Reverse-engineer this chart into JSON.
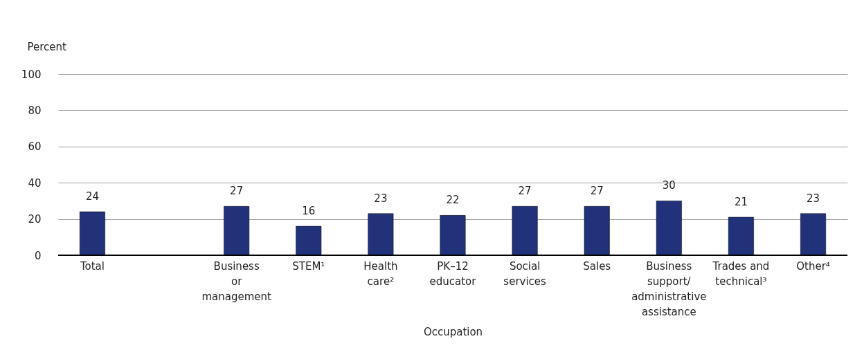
{
  "chart_data": {
    "type": "bar",
    "ylabel": "Percent",
    "xlabel": "Occupation",
    "categories": [
      "Total",
      null,
      "Business or management",
      "STEM¹",
      "Health care²",
      "PK–12 educator",
      "Social services",
      "Sales",
      "Business support/ administrative assistance",
      "Trades and technical³",
      "Other⁴"
    ],
    "values": [
      24,
      null,
      27,
      16,
      23,
      22,
      27,
      27,
      30,
      21,
      23
    ],
    "color": "#21317a",
    "ylim": [
      0,
      100
    ],
    "yticks": [
      0,
      20,
      40,
      60,
      80,
      100
    ],
    "grid": "y",
    "data_labels": true
  }
}
